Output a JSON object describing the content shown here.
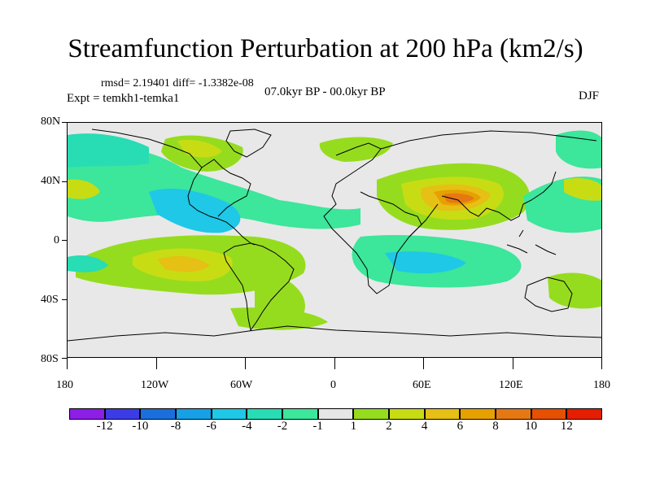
{
  "title": "Streamfunction Perturbation at 200 hPa (km2/s)",
  "stats": "rmsd= 2.19401 diff= -1.3382e-08",
  "experiment": "Expt = temkh1-temka1",
  "period": "07.0kyr BP - 00.0kyr BP",
  "season": "DJF",
  "axes": {
    "lat_labels": [
      "80N",
      "40N",
      "0",
      "40S",
      "80S"
    ],
    "lon_labels": [
      "180",
      "120W",
      "60W",
      "0",
      "60E",
      "120E",
      "180"
    ]
  },
  "colorbar": {
    "labels": [
      "-12",
      "-10",
      "-8",
      "-6",
      "-4",
      "-2",
      "-1",
      "1",
      "2",
      "4",
      "6",
      "8",
      "10",
      "12"
    ],
    "colors": [
      "#8c1ee6",
      "#3c3ce6",
      "#1a6fdc",
      "#17a0e6",
      "#1ec8e6",
      "#28dcb4",
      "#3ce69b",
      "#e6e6e6",
      "#96dc1e",
      "#c8dc14",
      "#e6c014",
      "#e6a000",
      "#e67814",
      "#e65000",
      "#e61e00"
    ]
  },
  "colors": {
    "background": "#ffffff",
    "missing": "#e8e8e8"
  }
}
